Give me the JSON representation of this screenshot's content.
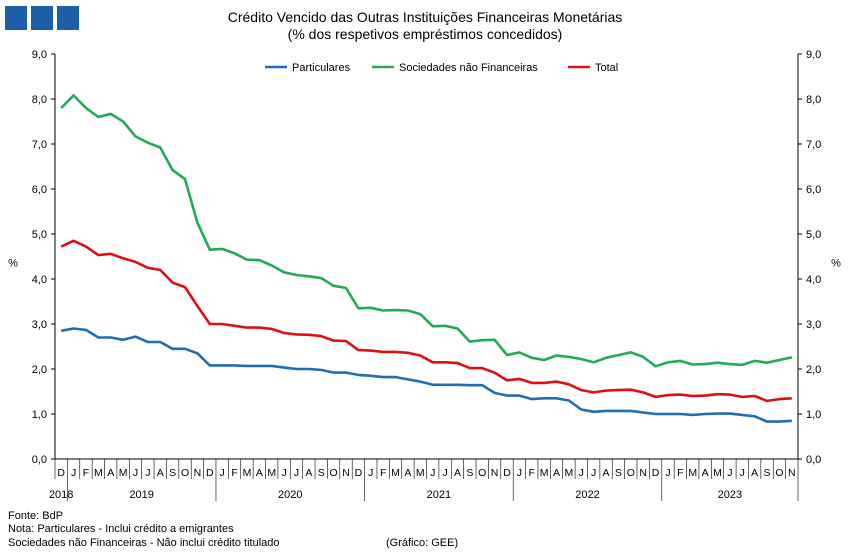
{
  "chart_data": {
    "type": "line",
    "title": "Crédito Vencido das Outras Instituições Financeiras Monetárias",
    "subtitle": "(% dos respetivos empréstimos concedidos)",
    "ylabel": "%",
    "ylim": [
      0,
      9
    ],
    "yticks": [
      "0,0",
      "1,0",
      "2,0",
      "3,0",
      "4,0",
      "5,0",
      "6,0",
      "7,0",
      "8,0",
      "9,0"
    ],
    "legend_position": "top",
    "x": [
      "2018-12",
      "2019-01",
      "2019-02",
      "2019-03",
      "2019-04",
      "2019-05",
      "2019-06",
      "2019-07",
      "2019-08",
      "2019-09",
      "2019-10",
      "2019-11",
      "2019-12",
      "2020-01",
      "2020-02",
      "2020-03",
      "2020-04",
      "2020-05",
      "2020-06",
      "2020-07",
      "2020-08",
      "2020-09",
      "2020-10",
      "2020-11",
      "2020-12",
      "2021-01",
      "2021-02",
      "2021-03",
      "2021-04",
      "2021-05",
      "2021-06",
      "2021-07",
      "2021-08",
      "2021-09",
      "2021-10",
      "2021-11",
      "2021-12",
      "2022-01",
      "2022-02",
      "2022-03",
      "2022-04",
      "2022-05",
      "2022-06",
      "2022-07",
      "2022-08",
      "2022-09",
      "2022-10",
      "2022-11",
      "2022-12",
      "2023-01",
      "2023-02",
      "2023-03",
      "2023-04",
      "2023-05",
      "2023-06",
      "2023-07",
      "2023-08",
      "2023-09",
      "2023-10",
      "2023-11"
    ],
    "month_letters": [
      "D",
      "J",
      "F",
      "M",
      "A",
      "M",
      "J",
      "J",
      "A",
      "S",
      "O",
      "N",
      "D",
      "J",
      "F",
      "M",
      "A",
      "M",
      "J",
      "J",
      "A",
      "S",
      "O",
      "N",
      "D",
      "J",
      "F",
      "M",
      "A",
      "M",
      "J",
      "J",
      "A",
      "S",
      "O",
      "N",
      "D",
      "J",
      "F",
      "M",
      "A",
      "M",
      "J",
      "J",
      "A",
      "S",
      "O",
      "N",
      "D",
      "J",
      "F",
      "M",
      "A",
      "M",
      "J",
      "J",
      "A",
      "S",
      "O",
      "N"
    ],
    "years": [
      {
        "label": "2018",
        "start": 0,
        "end": 0
      },
      {
        "label": "2019",
        "start": 1,
        "end": 12
      },
      {
        "label": "2020",
        "start": 13,
        "end": 24
      },
      {
        "label": "2021",
        "start": 25,
        "end": 36
      },
      {
        "label": "2022",
        "start": 37,
        "end": 48
      },
      {
        "label": "2023",
        "start": 49,
        "end": 59
      }
    ],
    "series": [
      {
        "name": "Particulares",
        "color": "#1f6db3",
        "values": [
          2.85,
          2.9,
          2.87,
          2.7,
          2.7,
          2.65,
          2.72,
          2.6,
          2.6,
          2.45,
          2.45,
          2.35,
          2.08,
          2.08,
          2.08,
          2.07,
          2.07,
          2.07,
          2.03,
          2.0,
          2.0,
          1.98,
          1.92,
          1.92,
          1.87,
          1.85,
          1.82,
          1.82,
          1.77,
          1.72,
          1.65,
          1.65,
          1.65,
          1.64,
          1.64,
          1.47,
          1.41,
          1.41,
          1.33,
          1.35,
          1.35,
          1.3,
          1.1,
          1.05,
          1.07,
          1.07,
          1.07,
          1.03,
          1.0,
          1.0,
          1.0,
          0.98,
          1.0,
          1.01,
          1.01,
          0.98,
          0.95,
          0.83,
          0.83,
          0.85
        ]
      },
      {
        "name": "Sociedades não Financeiras",
        "color": "#22aa55",
        "values": [
          7.8,
          8.08,
          7.8,
          7.6,
          7.67,
          7.5,
          7.17,
          7.03,
          6.92,
          6.42,
          6.22,
          5.25,
          4.65,
          4.67,
          4.57,
          4.43,
          4.42,
          4.3,
          4.15,
          4.09,
          4.06,
          4.02,
          3.85,
          3.8,
          3.35,
          3.36,
          3.3,
          3.31,
          3.3,
          3.22,
          2.95,
          2.96,
          2.9,
          2.61,
          2.64,
          2.65,
          2.31,
          2.37,
          2.25,
          2.2,
          2.3,
          2.27,
          2.22,
          2.15,
          2.25,
          2.31,
          2.37,
          2.27,
          2.06,
          2.15,
          2.18,
          2.1,
          2.11,
          2.14,
          2.11,
          2.09,
          2.18,
          2.14,
          2.2,
          2.26
        ]
      },
      {
        "name": "Total",
        "color": "#dd1111",
        "values": [
          4.72,
          4.85,
          4.72,
          4.53,
          4.56,
          4.46,
          4.38,
          4.25,
          4.2,
          3.92,
          3.82,
          3.4,
          3.0,
          3.0,
          2.96,
          2.92,
          2.92,
          2.89,
          2.8,
          2.77,
          2.76,
          2.73,
          2.63,
          2.62,
          2.42,
          2.41,
          2.38,
          2.38,
          2.36,
          2.3,
          2.15,
          2.15,
          2.13,
          2.02,
          2.02,
          1.92,
          1.75,
          1.78,
          1.69,
          1.69,
          1.72,
          1.66,
          1.53,
          1.48,
          1.52,
          1.53,
          1.54,
          1.48,
          1.38,
          1.42,
          1.43,
          1.4,
          1.41,
          1.44,
          1.43,
          1.38,
          1.4,
          1.29,
          1.33,
          1.35
        ]
      }
    ]
  },
  "notes": {
    "fonte": "Fonte: BdP",
    "nota": "Nota: Particulares - Inclui crédito a emigrantes",
    "sociedades": "Sociedades não Financeiras - Não inclui crédito titulado",
    "grafico": "(Gráfico: GEE)"
  }
}
